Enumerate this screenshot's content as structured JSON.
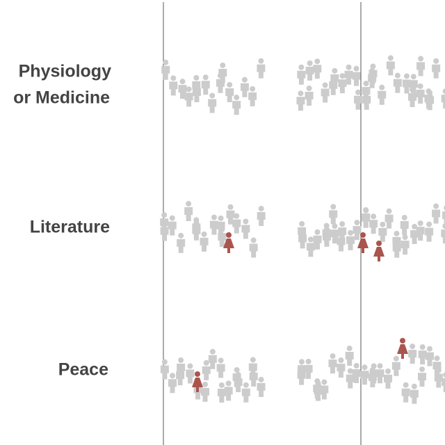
{
  "rows": [
    {
      "label_lines": [
        "Physiology",
        "or Medicine"
      ]
    },
    {
      "label_lines": [
        "Literature"
      ]
    },
    {
      "label_lines": [
        "Peace"
      ]
    }
  ]
}
